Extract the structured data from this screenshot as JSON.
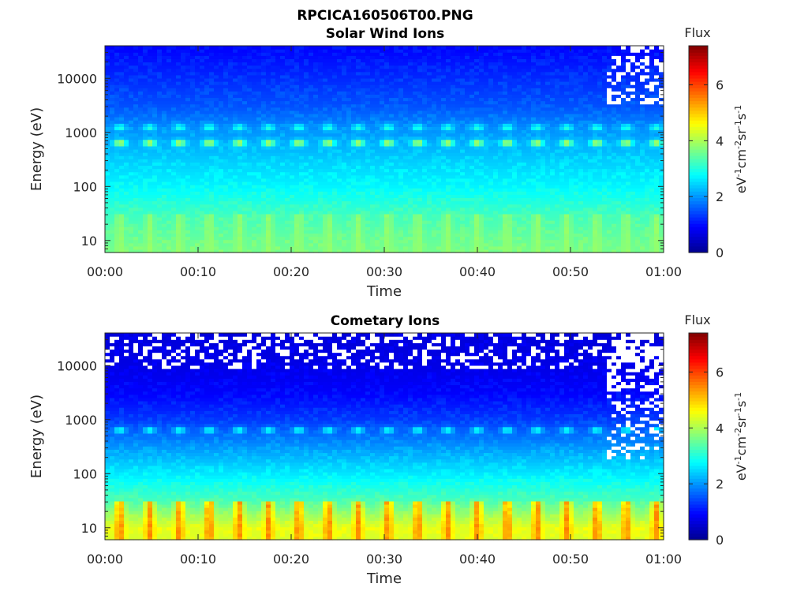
{
  "figure_title": "RPCICA160506T00.PNG",
  "colormap": [
    "#00008f",
    "#0000ff",
    "#0080ff",
    "#00ffff",
    "#80ff80",
    "#ffff00",
    "#ff8000",
    "#ff0000",
    "#800000"
  ],
  "chart_data": [
    {
      "type": "heatmap",
      "title": "Solar Wind Ions",
      "xlabel": "Time",
      "ylabel": "Energy (eV)",
      "x_range": [
        "00:00",
        "01:00"
      ],
      "x_ticks": [
        "00:00",
        "00:10",
        "00:20",
        "00:30",
        "00:40",
        "00:50",
        "01:00"
      ],
      "y_scale": "log",
      "ylim": [
        6,
        40000
      ],
      "y_ticks": [
        10,
        100,
        1000,
        10000
      ],
      "y_tick_labels": [
        "10",
        "100",
        "1000",
        "10000"
      ],
      "colorbar": {
        "title": "Flux",
        "unit": "eV-1cm-2sr-1s-1",
        "range": [
          0,
          7.4
        ],
        "ticks": [
          "0",
          "2",
          "4",
          "6"
        ]
      },
      "sweep_period_min": 3.2,
      "background_flux_by_energy": {
        "energies": [
          6,
          10,
          30,
          100,
          300,
          1000,
          3000,
          10000,
          40000
        ],
        "flux": [
          3.6,
          3.5,
          3.2,
          2.7,
          2.4,
          2.0,
          1.5,
          1.2,
          0.9
        ]
      },
      "features": [
        {
          "label": "pulsed low-energy band",
          "energy_range": [
            6,
            30
          ],
          "peak_flux": 3.9
        },
        {
          "label": "solar wind proton peak",
          "energy": 650,
          "peak_flux": 4.3
        },
        {
          "label": "solar wind alpha peak",
          "energy": 1250,
          "peak_flux": 3.1
        }
      ],
      "noise_region": {
        "time_start": "00:54",
        "note": "sparse high-energy pixels"
      }
    },
    {
      "type": "heatmap",
      "title": "Cometary Ions",
      "xlabel": "Time",
      "ylabel": "Energy (eV)",
      "x_range": [
        "00:00",
        "01:00"
      ],
      "x_ticks": [
        "00:00",
        "00:10",
        "00:20",
        "00:30",
        "00:40",
        "00:50",
        "01:00"
      ],
      "y_scale": "log",
      "ylim": [
        6,
        40000
      ],
      "y_ticks": [
        10,
        100,
        1000,
        10000
      ],
      "y_tick_labels": [
        "10",
        "100",
        "1000",
        "10000"
      ],
      "colorbar": {
        "title": "Flux",
        "unit": "eV-1cm-2sr-1s-1",
        "range": [
          0,
          7.4
        ],
        "ticks": [
          "0",
          "2",
          "4",
          "6"
        ]
      },
      "sweep_period_min": 3.2,
      "background_flux_by_energy": {
        "energies": [
          6,
          10,
          30,
          100,
          300,
          1000,
          3000,
          10000,
          40000
        ],
        "flux": [
          4.3,
          4.4,
          3.3,
          2.6,
          2.0,
          1.3,
          0.9,
          0.7,
          0.6
        ]
      },
      "features": [
        {
          "label": "pulsed low-energy band",
          "energy_range": [
            6,
            30
          ],
          "peak_flux": 5.6
        },
        {
          "label": "solar wind proton peak",
          "energy": 650,
          "peak_flux": 3.0
        }
      ],
      "missing_data_band": {
        "energy_range": [
          9000,
          40000
        ],
        "note": "blank pixels"
      },
      "noise_region": {
        "time_start": "00:54",
        "note": "sparse high-energy pixels"
      }
    }
  ]
}
